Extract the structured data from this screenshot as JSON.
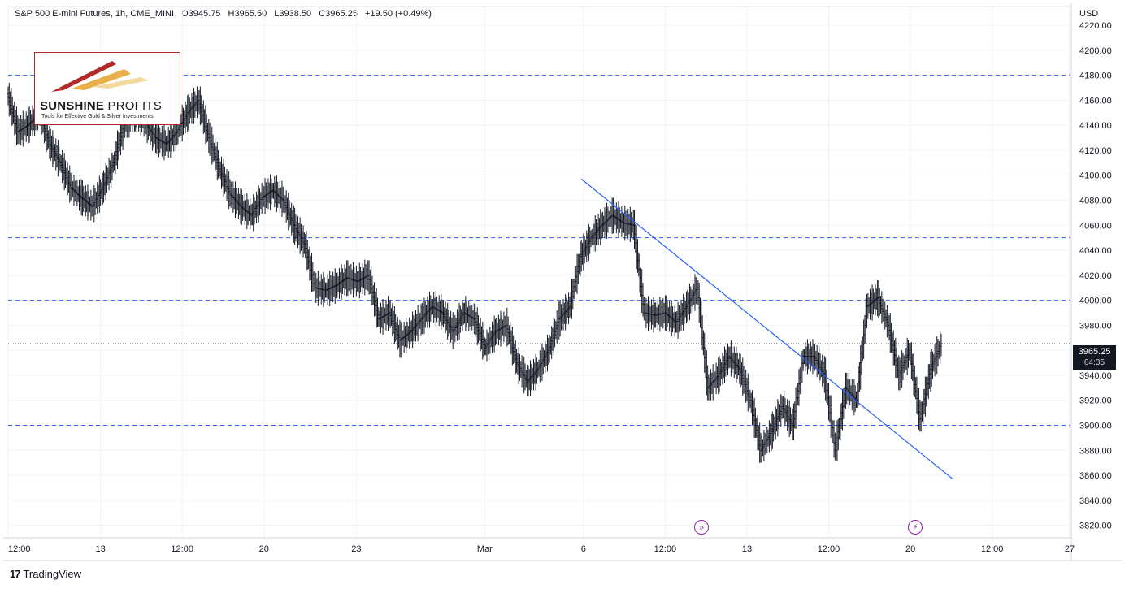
{
  "header": {
    "symbol": "S&P 500 E-mini Futures, 1h, CME_MINI",
    "open": "O3945.75",
    "high": "H3965.50",
    "low": "L3938.50",
    "close": "C3965.25",
    "change": "+19.50 (+0.49%)"
  },
  "watermark": {
    "name_bold": "SUNSHINE",
    "name_regular": "PROFITS",
    "tagline": "Tools for Effective Gold & Silver Investments"
  },
  "price_axis": {
    "currency": "USD",
    "current_price": "3965.25",
    "countdown": "04:35"
  },
  "footer": {
    "brand": "TradingView"
  },
  "colors": {
    "candle": "#131722",
    "support_lines": "#2962ff",
    "trendline": "#2962ff",
    "event_icons": "#8e24aa"
  },
  "chart_data": {
    "type": "line",
    "subtype": "hourly price bars (drawn as close path)",
    "title": "S&P 500 E-mini Futures, 1h, CME_MINI",
    "ylim": [
      3810,
      4235
    ],
    "yticks": [
      3820,
      3840,
      3860,
      3880,
      3900,
      3920,
      3940,
      3960,
      3980,
      4000,
      4020,
      4040,
      4060,
      4080,
      4100,
      4120,
      4140,
      4160,
      4180,
      4200,
      4220
    ],
    "xticks": [
      "12:00",
      "13",
      "12:00",
      "20",
      "23",
      "Mar",
      "6",
      "12:00",
      "13",
      "12:00",
      "20",
      "12:00",
      "27"
    ],
    "xtick_x": [
      0,
      0.087,
      0.164,
      0.241,
      0.328,
      0.449,
      0.542,
      0.619,
      0.696,
      0.773,
      0.85,
      0.927,
      1.0
    ],
    "price_path": [
      [
        0.0,
        4165
      ],
      [
        0.01,
        4135
      ],
      [
        0.02,
        4140
      ],
      [
        0.03,
        4150
      ],
      [
        0.04,
        4125
      ],
      [
        0.05,
        4110
      ],
      [
        0.06,
        4090
      ],
      [
        0.07,
        4082
      ],
      [
        0.08,
        4075
      ],
      [
        0.09,
        4090
      ],
      [
        0.1,
        4110
      ],
      [
        0.11,
        4140
      ],
      [
        0.12,
        4150
      ],
      [
        0.13,
        4142
      ],
      [
        0.14,
        4130
      ],
      [
        0.15,
        4125
      ],
      [
        0.16,
        4135
      ],
      [
        0.17,
        4150
      ],
      [
        0.18,
        4160
      ],
      [
        0.19,
        4130
      ],
      [
        0.2,
        4105
      ],
      [
        0.21,
        4085
      ],
      [
        0.22,
        4075
      ],
      [
        0.23,
        4068
      ],
      [
        0.24,
        4082
      ],
      [
        0.25,
        4088
      ],
      [
        0.26,
        4080
      ],
      [
        0.27,
        4060
      ],
      [
        0.28,
        4045
      ],
      [
        0.29,
        4010
      ],
      [
        0.3,
        4008
      ],
      [
        0.31,
        4012
      ],
      [
        0.32,
        4018
      ],
      [
        0.33,
        4015
      ],
      [
        0.34,
        4020
      ],
      [
        0.35,
        3985
      ],
      [
        0.36,
        3990
      ],
      [
        0.37,
        3968
      ],
      [
        0.38,
        3975
      ],
      [
        0.39,
        3985
      ],
      [
        0.4,
        3995
      ],
      [
        0.41,
        3990
      ],
      [
        0.42,
        3975
      ],
      [
        0.43,
        3990
      ],
      [
        0.44,
        3985
      ],
      [
        0.45,
        3962
      ],
      [
        0.46,
        3975
      ],
      [
        0.47,
        3980
      ],
      [
        0.48,
        3950
      ],
      [
        0.49,
        3935
      ],
      [
        0.5,
        3945
      ],
      [
        0.51,
        3960
      ],
      [
        0.52,
        3985
      ],
      [
        0.53,
        3995
      ],
      [
        0.54,
        4035
      ],
      [
        0.55,
        4050
      ],
      [
        0.56,
        4060
      ],
      [
        0.57,
        4068
      ],
      [
        0.58,
        4062
      ],
      [
        0.59,
        4060
      ],
      [
        0.6,
        3990
      ],
      [
        0.61,
        3988
      ],
      [
        0.62,
        3990
      ],
      [
        0.63,
        3982
      ],
      [
        0.64,
        3995
      ],
      [
        0.65,
        4010
      ],
      [
        0.66,
        3930
      ],
      [
        0.67,
        3940
      ],
      [
        0.68,
        3955
      ],
      [
        0.69,
        3945
      ],
      [
        0.7,
        3920
      ],
      [
        0.71,
        3880
      ],
      [
        0.72,
        3895
      ],
      [
        0.73,
        3915
      ],
      [
        0.74,
        3900
      ],
      [
        0.75,
        3955
      ],
      [
        0.76,
        3955
      ],
      [
        0.77,
        3940
      ],
      [
        0.78,
        3880
      ],
      [
        0.79,
        3930
      ],
      [
        0.8,
        3920
      ],
      [
        0.81,
        3995
      ],
      [
        0.82,
        4002
      ],
      [
        0.83,
        3980
      ],
      [
        0.84,
        3940
      ],
      [
        0.85,
        3960
      ],
      [
        0.86,
        3905
      ],
      [
        0.87,
        3945
      ],
      [
        0.88,
        3965.25
      ]
    ],
    "horizontal_levels": [
      4180,
      4050,
      4000,
      3900
    ],
    "last_price_line": 3965.25,
    "trendline": {
      "from": [
        0.54,
        4097
      ],
      "to": [
        0.89,
        3857
      ]
    },
    "grid": true,
    "legend": "none"
  }
}
